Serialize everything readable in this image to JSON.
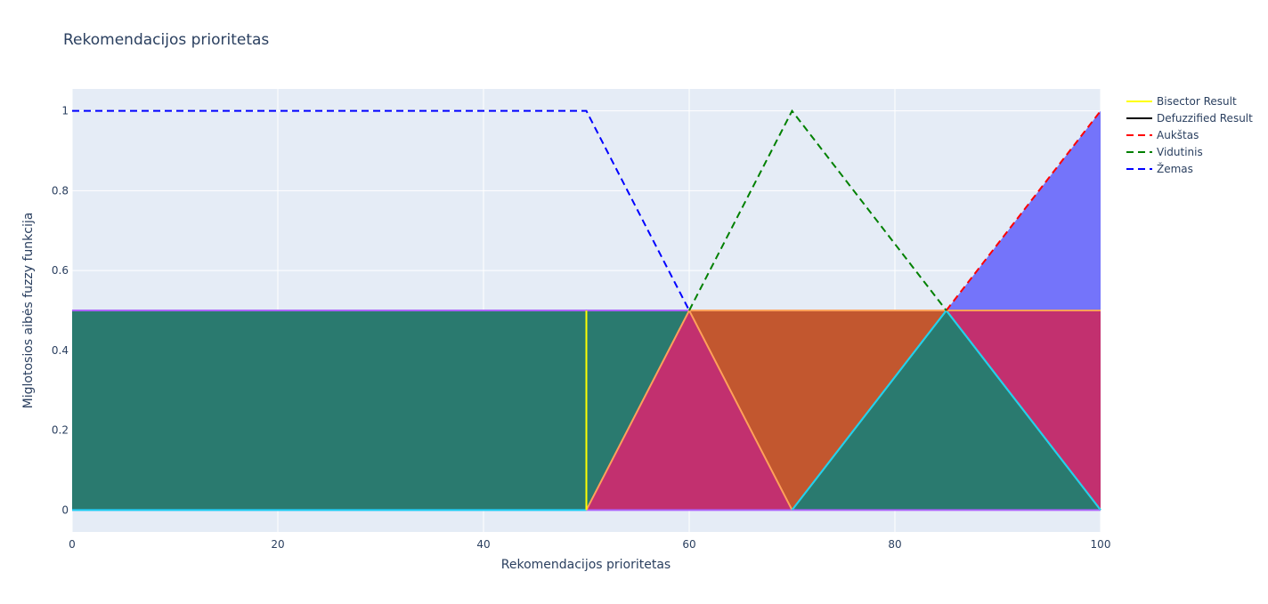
{
  "chart_data": {
    "type": "line",
    "title": "Rekomendacijos prioritetas",
    "xlabel": "Rekomendacijos prioritetas",
    "ylabel": "Miglotosios aibės fuzzy funkcija",
    "xlim": [
      0,
      100
    ],
    "ylim": [
      -0.055,
      1.055
    ],
    "xticks": [
      0,
      20,
      40,
      60,
      80,
      100
    ],
    "yticks": [
      0,
      0.2,
      0.4,
      0.6,
      0.8,
      1
    ],
    "ytick_labels": [
      "0",
      "0.2",
      "0.4",
      "0.6",
      "0.8",
      "1"
    ],
    "grid": true,
    "plot_bgcolor": "#e5ecf6",
    "legend_position": "top-right",
    "series": [
      {
        "name": "Bisector Result",
        "color": "#ffff00",
        "dash": "solid",
        "x": [
          50,
          50
        ],
        "y": [
          0,
          0.5
        ]
      },
      {
        "name": "Defuzzified Result",
        "color": "#000000",
        "dash": "solid",
        "x": [],
        "y": []
      },
      {
        "name": "Aukštas",
        "color": "#ff0000",
        "dash": "dash",
        "x": [
          85,
          100
        ],
        "y": [
          0.5,
          1
        ]
      },
      {
        "name": "Vidutinis",
        "color": "#008000",
        "dash": "dash",
        "x": [
          60,
          70,
          85
        ],
        "y": [
          0.5,
          1,
          0.5
        ]
      },
      {
        "name": "Žemas",
        "color": "#0000ff",
        "dash": "dash",
        "x": [
          0,
          50,
          60
        ],
        "y": [
          1,
          1,
          0.5
        ]
      }
    ],
    "filled_regions": [
      {
        "color": "#2a7a6f",
        "x": [
          0,
          50,
          60,
          50,
          0
        ],
        "y": [
          0,
          0,
          0.5,
          0.5,
          0.5
        ]
      },
      {
        "color": "#2a7a6f",
        "x": [
          50,
          60,
          50
        ],
        "y": [
          0.5,
          0.5,
          0
        ]
      },
      {
        "color": "#c2306f",
        "x": [
          50,
          60,
          70
        ],
        "y": [
          0,
          0.5,
          0
        ]
      },
      {
        "color": "#c2572f",
        "x": [
          60,
          85,
          70
        ],
        "y": [
          0.5,
          0.5,
          0
        ]
      },
      {
        "color": "#2a7a6f",
        "x": [
          70,
          85,
          100
        ],
        "y": [
          0,
          0.5,
          0
        ]
      },
      {
        "color": "#c2306f",
        "x": [
          85,
          100,
          100
        ],
        "y": [
          0.5,
          0.5,
          0
        ]
      },
      {
        "color": "#7474fa",
        "x": [
          85,
          100,
          100
        ],
        "y": [
          0.5,
          1,
          0.5
        ]
      }
    ],
    "outline_lines": [
      {
        "color": "#ab63fa",
        "x": [
          0,
          100
        ],
        "y": [
          0.5,
          0.5
        ]
      },
      {
        "color": "#ab63fa",
        "x": [
          0,
          100
        ],
        "y": [
          0,
          0
        ]
      },
      {
        "color": "#19d3f3",
        "x": [
          0,
          50
        ],
        "y": [
          0,
          0
        ]
      },
      {
        "color": "#ffa15a",
        "x": [
          50,
          60,
          70
        ],
        "y": [
          0,
          0.5,
          0
        ]
      },
      {
        "color": "#ffa15a",
        "x": [
          60,
          85
        ],
        "y": [
          0.5,
          0.5
        ]
      },
      {
        "color": "#ffa15a",
        "x": [
          70,
          85,
          100
        ],
        "y": [
          0,
          0.5,
          0
        ]
      },
      {
        "color": "#19d3f3",
        "x": [
          70,
          85,
          100
        ],
        "y": [
          0,
          0.5,
          0
        ]
      },
      {
        "color": "#19d3f3",
        "x": [
          85,
          100
        ],
        "y": [
          0.5,
          0.5
        ]
      },
      {
        "color": "#ffa15a",
        "x": [
          85,
          100
        ],
        "y": [
          0.5,
          0.5
        ]
      }
    ]
  }
}
